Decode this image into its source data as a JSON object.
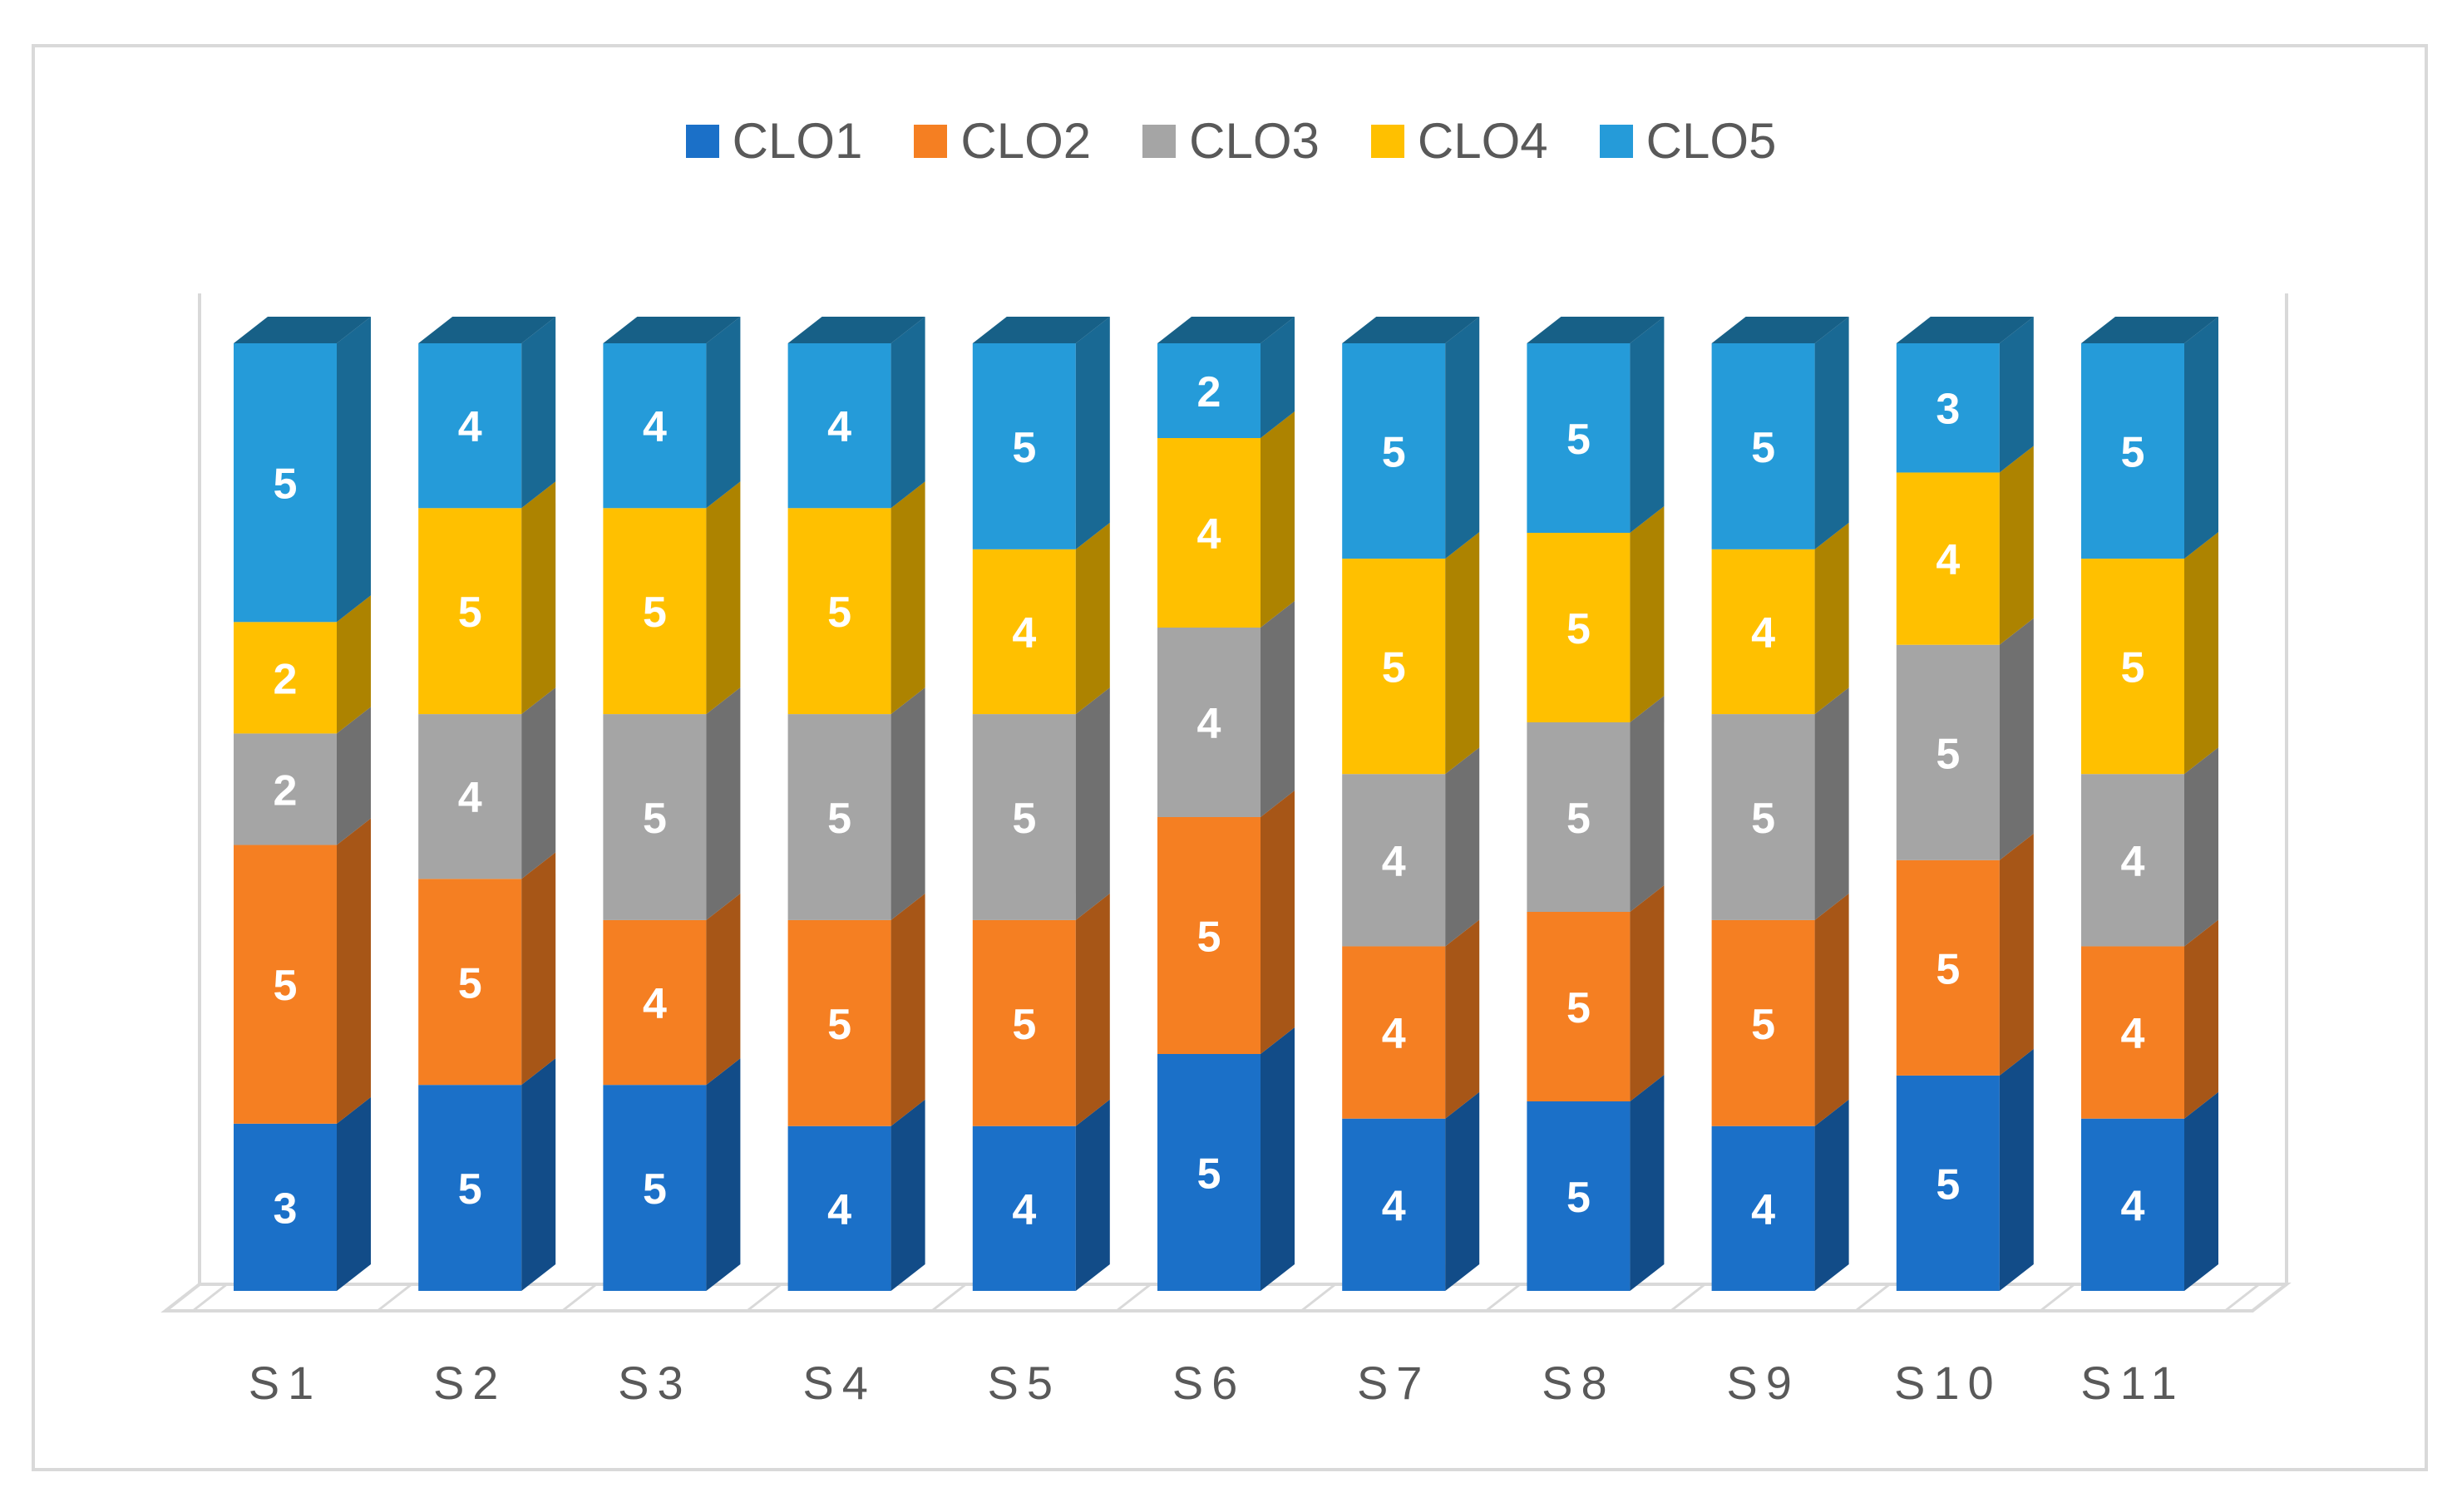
{
  "chart_data": {
    "type": "bar",
    "stacked": true,
    "style": "3d-column",
    "categories": [
      "S1",
      "S2",
      "S3",
      "S4",
      "S5",
      "S6",
      "S7",
      "S8",
      "S9",
      "S10",
      "S11"
    ],
    "series": [
      {
        "name": "CLO1",
        "color": "#1b70c8",
        "values": [
          3,
          5,
          5,
          4,
          4,
          5,
          4,
          5,
          4,
          5,
          4
        ]
      },
      {
        "name": "CLO2",
        "color": "#f57f22",
        "values": [
          5,
          5,
          4,
          5,
          5,
          5,
          4,
          5,
          5,
          5,
          4
        ]
      },
      {
        "name": "CLO3",
        "color": "#a5a5a5",
        "values": [
          2,
          4,
          5,
          5,
          5,
          4,
          4,
          5,
          5,
          5,
          4
        ]
      },
      {
        "name": "CLO4",
        "color": "#ffc000",
        "values": [
          2,
          5,
          5,
          5,
          4,
          4,
          5,
          5,
          4,
          4,
          5
        ]
      },
      {
        "name": "CLO5",
        "color": "#259bd9",
        "values": [
          5,
          4,
          4,
          4,
          5,
          2,
          5,
          5,
          5,
          3,
          5
        ]
      }
    ],
    "normalized": true,
    "legend_position": "top",
    "grid": false
  }
}
